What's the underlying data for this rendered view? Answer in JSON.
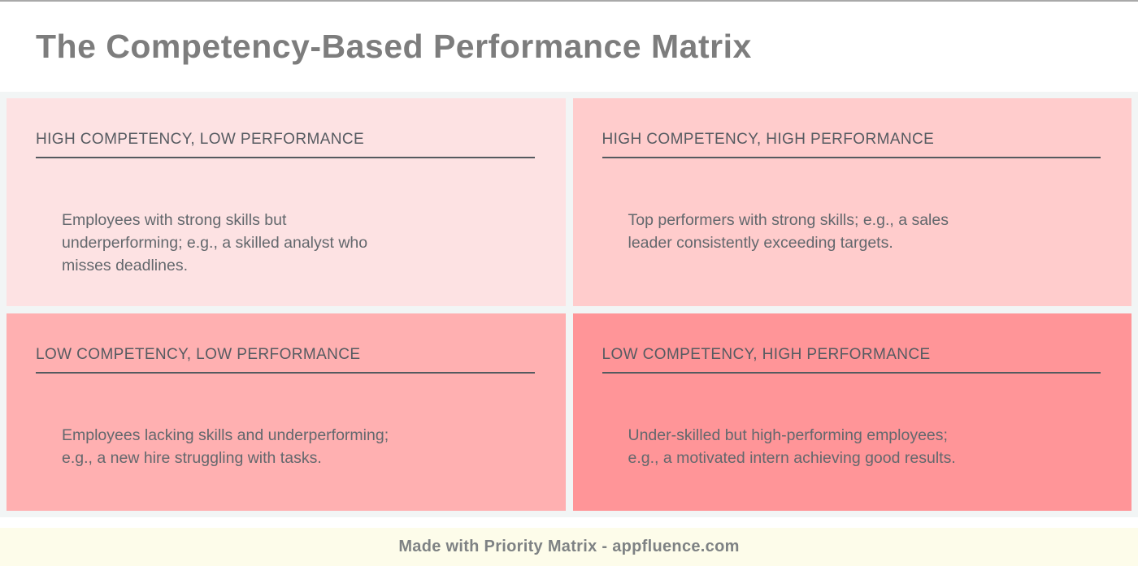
{
  "page": {
    "title": "The Competency-Based Performance Matrix",
    "footer_text": "Made with Priority Matrix - appfluence.com"
  },
  "colors": {
    "top_border": "#a9a9a9",
    "title_text": "#7d7d7d",
    "quadrant_header_text": "#565b61",
    "quadrant_body_text": "#63686d",
    "header_underline": "#555a5f",
    "grid_gap_background": "#f2f5f5",
    "footer_background": "#fdfcea",
    "footer_text": "#7e8284",
    "quadrant_backgrounds": {
      "high_competency_low_performance": "#fde2e3",
      "high_competency_high_performance": "#ffcccc",
      "low_competency_low_performance": "#ffb0b1",
      "low_competency_high_performance": "#ff9598"
    }
  },
  "quadrants": [
    {
      "title": "HIGH COMPETENCY, LOW PERFORMANCE",
      "body": "Employees with strong skills but\nunderperforming; e.g., a skilled analyst who\nmisses deadlines.",
      "bg": "#fde2e3"
    },
    {
      "title": "HIGH COMPETENCY, HIGH PERFORMANCE",
      "body": "Top performers with strong skills; e.g., a sales\nleader consistently exceeding targets.",
      "bg": "#ffcccc"
    },
    {
      "title": "LOW COMPETENCY, LOW PERFORMANCE",
      "body": "Employees lacking skills and underperforming;\ne.g., a new hire struggling with tasks.",
      "bg": "#ffb0b1"
    },
    {
      "title": "LOW COMPETENCY, HIGH PERFORMANCE",
      "body": "Under-skilled but high-performing employees;\ne.g., a motivated intern achieving good results.",
      "bg": "#ff9598"
    }
  ]
}
